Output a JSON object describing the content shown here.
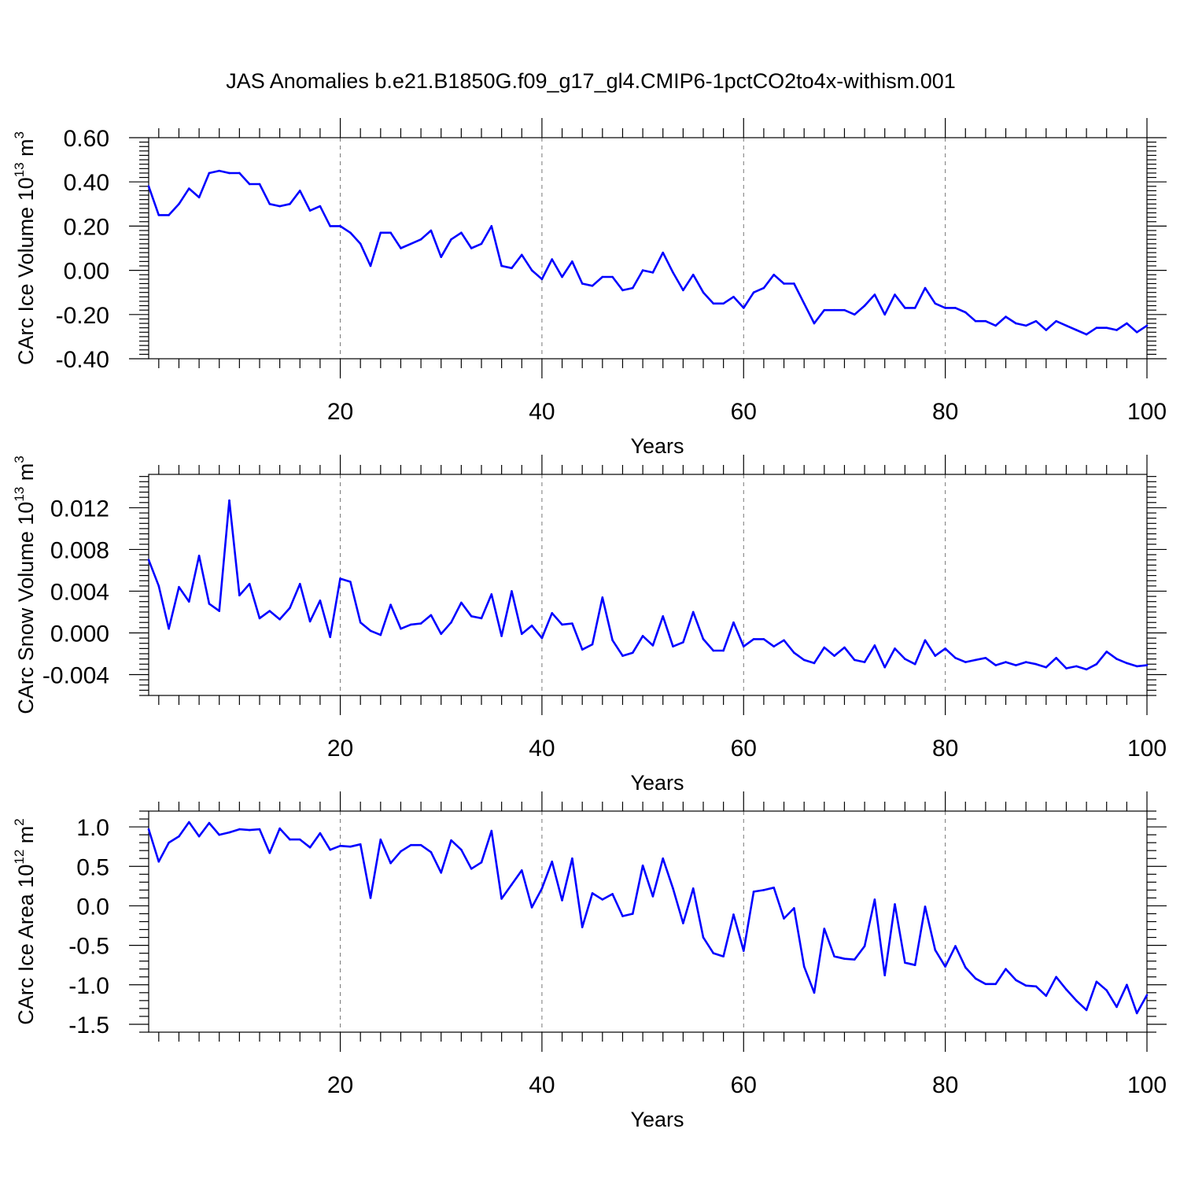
{
  "title": "JAS Anomalies b.e21.B1850G.f09_g17_gl4.CMIP6-1pctCO2to4x-withism.001",
  "colors": {
    "series": "#0000ff",
    "axis": "#000000",
    "grid": "#777777"
  },
  "chart_data": [
    {
      "type": "line",
      "title": "JAS Anomalies b.e21.B1850G.f09_g17_gl4.CMIP6-1pctCO2to4x-withism.001",
      "xlabel": "Years",
      "ylabel_pre": "CArc Ice Volume 10",
      "ylabel_sup": "13",
      "ylabel_post": " m",
      "ylabel_sup2": "3",
      "xlim": [
        1,
        100
      ],
      "ylim": [
        -0.4,
        0.6
      ],
      "xticks": [
        20,
        40,
        60,
        80,
        100
      ],
      "xtick_labels": [
        "20",
        "40",
        "60",
        "80",
        "100"
      ],
      "yticks": [
        -0.4,
        -0.2,
        0.0,
        0.2,
        0.4,
        0.6
      ],
      "ytick_labels": [
        "-0.40",
        "-0.20",
        "0.00",
        "0.20",
        "0.40",
        "0.60"
      ],
      "series": [
        {
          "name": "CArc Ice Volume",
          "x": [
            1,
            2,
            3,
            4,
            5,
            6,
            7,
            8,
            9,
            10,
            11,
            12,
            13,
            14,
            15,
            16,
            17,
            18,
            19,
            20,
            21,
            22,
            23,
            24,
            25,
            26,
            27,
            28,
            29,
            30,
            31,
            32,
            33,
            34,
            35,
            36,
            37,
            38,
            39,
            40,
            41,
            42,
            43,
            44,
            45,
            46,
            47,
            48,
            49,
            50,
            51,
            52,
            53,
            54,
            55,
            56,
            57,
            58,
            59,
            60,
            61,
            62,
            63,
            64,
            65,
            66,
            67,
            68,
            69,
            70,
            71,
            72,
            73,
            74,
            75,
            76,
            77,
            78,
            79,
            80,
            81,
            82,
            83,
            84,
            85,
            86,
            87,
            88,
            89,
            90,
            91,
            92,
            93,
            94,
            95,
            96,
            97,
            98,
            99,
            100
          ],
          "values": [
            0.38,
            0.25,
            0.25,
            0.3,
            0.37,
            0.33,
            0.44,
            0.45,
            0.44,
            0.44,
            0.39,
            0.39,
            0.3,
            0.29,
            0.3,
            0.36,
            0.27,
            0.29,
            0.2,
            0.2,
            0.17,
            0.12,
            0.02,
            0.17,
            0.17,
            0.1,
            0.12,
            0.14,
            0.18,
            0.06,
            0.14,
            0.17,
            0.1,
            0.12,
            0.2,
            0.02,
            0.01,
            0.07,
            0.0,
            -0.04,
            0.05,
            -0.03,
            0.04,
            -0.06,
            -0.07,
            -0.03,
            -0.03,
            -0.09,
            -0.08,
            0.0,
            -0.01,
            0.08,
            -0.01,
            -0.09,
            -0.02,
            -0.1,
            -0.15,
            -0.15,
            -0.12,
            -0.17,
            -0.1,
            -0.08,
            -0.02,
            -0.06,
            -0.06,
            -0.15,
            -0.24,
            -0.18,
            -0.18,
            -0.18,
            -0.2,
            -0.16,
            -0.11,
            -0.2,
            -0.11,
            -0.17,
            -0.17,
            -0.08,
            -0.15,
            -0.17,
            -0.17,
            -0.19,
            -0.23,
            -0.23,
            -0.25,
            -0.21,
            -0.24,
            -0.25,
            -0.23,
            -0.27,
            -0.23,
            -0.25,
            -0.27,
            -0.29,
            -0.26,
            -0.26,
            -0.27,
            -0.24,
            -0.28,
            -0.25
          ]
        }
      ]
    },
    {
      "type": "line",
      "xlabel": "Years",
      "ylabel_pre": "CArc Snow Volume 10",
      "ylabel_sup": "13",
      "ylabel_post": " m",
      "ylabel_sup2": "3",
      "xlim": [
        1,
        100
      ],
      "ylim": [
        -0.006,
        0.0152
      ],
      "xticks": [
        20,
        40,
        60,
        80,
        100
      ],
      "xtick_labels": [
        "20",
        "40",
        "60",
        "80",
        "100"
      ],
      "yticks": [
        -0.004,
        0.0,
        0.004,
        0.008,
        0.012
      ],
      "ytick_labels": [
        "-0.004",
        "0.000",
        "0.004",
        "0.008",
        "0.012"
      ],
      "series": [
        {
          "name": "CArc Snow Volume",
          "x": [
            1,
            2,
            3,
            4,
            5,
            6,
            7,
            8,
            9,
            10,
            11,
            12,
            13,
            14,
            15,
            16,
            17,
            18,
            19,
            20,
            21,
            22,
            23,
            24,
            25,
            26,
            27,
            28,
            29,
            30,
            31,
            32,
            33,
            34,
            35,
            36,
            37,
            38,
            39,
            40,
            41,
            42,
            43,
            44,
            45,
            46,
            47,
            48,
            49,
            50,
            51,
            52,
            53,
            54,
            55,
            56,
            57,
            58,
            59,
            60,
            61,
            62,
            63,
            64,
            65,
            66,
            67,
            68,
            69,
            70,
            71,
            72,
            73,
            74,
            75,
            76,
            77,
            78,
            79,
            80,
            81,
            82,
            83,
            84,
            85,
            86,
            87,
            88,
            89,
            90,
            91,
            92,
            93,
            94,
            95,
            96,
            97,
            98,
            99,
            100
          ],
          "values": [
            0.007,
            0.0045,
            0.0004,
            0.0044,
            0.003,
            0.0074,
            0.0028,
            0.0021,
            0.0127,
            0.0036,
            0.0047,
            0.0014,
            0.0021,
            0.0013,
            0.0024,
            0.0047,
            0.0011,
            0.0031,
            -0.0004,
            0.0052,
            0.0049,
            0.001,
            0.0002,
            -0.0002,
            0.0027,
            0.0004,
            0.0008,
            0.0009,
            0.0017,
            -0.0001,
            0.001,
            0.0029,
            0.0016,
            0.0014,
            0.0037,
            -0.0003,
            0.004,
            -0.0001,
            0.0007,
            -0.0005,
            0.0019,
            0.0008,
            0.0009,
            -0.0016,
            -0.0011,
            0.0034,
            -0.0007,
            -0.0022,
            -0.0019,
            -0.0003,
            -0.0012,
            0.0016,
            -0.0013,
            -0.0009,
            0.002,
            -0.0006,
            -0.0017,
            -0.0017,
            0.001,
            -0.0013,
            -0.0006,
            -0.0006,
            -0.0013,
            -0.0007,
            -0.0019,
            -0.0026,
            -0.0029,
            -0.0014,
            -0.0022,
            -0.0014,
            -0.0026,
            -0.0028,
            -0.0012,
            -0.0033,
            -0.0015,
            -0.0025,
            -0.003,
            -0.0007,
            -0.0022,
            -0.0015,
            -0.0024,
            -0.0028,
            -0.0026,
            -0.0024,
            -0.0031,
            -0.0028,
            -0.0031,
            -0.0028,
            -0.003,
            -0.0033,
            -0.0024,
            -0.0034,
            -0.0032,
            -0.0035,
            -0.003,
            -0.0018,
            -0.0025,
            -0.0029,
            -0.0032,
            -0.0031
          ]
        }
      ]
    },
    {
      "type": "line",
      "xlabel": "Years",
      "ylabel_pre": "CArc Ice Area 10",
      "ylabel_sup": "12",
      "ylabel_post": " m",
      "ylabel_sup2": "2",
      "xlim": [
        1,
        100
      ],
      "ylim": [
        -1.6,
        1.2
      ],
      "xticks": [
        20,
        40,
        60,
        80,
        100
      ],
      "xtick_labels": [
        "20",
        "40",
        "60",
        "80",
        "100"
      ],
      "yticks": [
        -1.5,
        -1.0,
        -0.5,
        0.0,
        0.5,
        1.0
      ],
      "ytick_labels": [
        "-1.5",
        "-1.0",
        "-0.5",
        "0.0",
        "0.5",
        "1.0"
      ],
      "series": [
        {
          "name": "CArc Ice Area",
          "x": [
            1,
            2,
            3,
            4,
            5,
            6,
            7,
            8,
            9,
            10,
            11,
            12,
            13,
            14,
            15,
            16,
            17,
            18,
            19,
            20,
            21,
            22,
            23,
            24,
            25,
            26,
            27,
            28,
            29,
            30,
            31,
            32,
            33,
            34,
            35,
            36,
            37,
            38,
            39,
            40,
            41,
            42,
            43,
            44,
            45,
            46,
            47,
            48,
            49,
            50,
            51,
            52,
            53,
            54,
            55,
            56,
            57,
            58,
            59,
            60,
            61,
            62,
            63,
            64,
            65,
            66,
            67,
            68,
            69,
            70,
            71,
            72,
            73,
            74,
            75,
            76,
            77,
            78,
            79,
            80,
            81,
            82,
            83,
            84,
            85,
            86,
            87,
            88,
            89,
            90,
            91,
            92,
            93,
            94,
            95,
            96,
            97,
            98,
            99,
            100
          ],
          "values": [
            0.97,
            0.56,
            0.8,
            0.88,
            1.06,
            0.88,
            1.05,
            0.9,
            0.93,
            0.97,
            0.96,
            0.97,
            0.67,
            0.98,
            0.84,
            0.84,
            0.74,
            0.92,
            0.71,
            0.76,
            0.75,
            0.78,
            0.1,
            0.84,
            0.54,
            0.69,
            0.77,
            0.77,
            0.68,
            0.42,
            0.83,
            0.71,
            0.47,
            0.55,
            0.95,
            0.09,
            0.27,
            0.45,
            -0.02,
            0.22,
            0.56,
            0.07,
            0.6,
            -0.27,
            0.16,
            0.08,
            0.15,
            -0.13,
            -0.1,
            0.51,
            0.12,
            0.6,
            0.22,
            -0.22,
            0.22,
            -0.4,
            -0.6,
            -0.64,
            -0.11,
            -0.57,
            0.18,
            0.2,
            0.23,
            -0.16,
            -0.03,
            -0.77,
            -1.1,
            -0.29,
            -0.64,
            -0.67,
            -0.68,
            -0.51,
            0.08,
            -0.88,
            0.02,
            -0.72,
            -0.75,
            -0.01,
            -0.56,
            -0.77,
            -0.51,
            -0.78,
            -0.92,
            -0.99,
            -0.99,
            -0.8,
            -0.94,
            -1.01,
            -1.02,
            -1.14,
            -0.9,
            -1.06,
            -1.2,
            -1.32,
            -0.96,
            -1.07,
            -1.28,
            -1.0,
            -1.36,
            -1.13
          ]
        }
      ]
    }
  ]
}
